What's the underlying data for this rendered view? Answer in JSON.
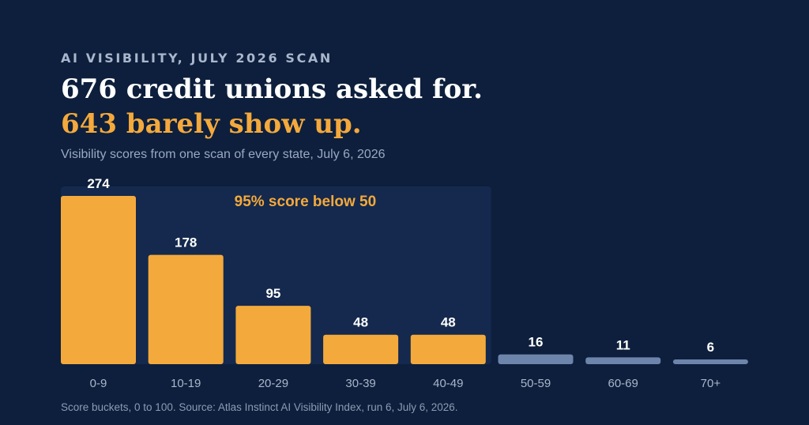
{
  "header": {
    "kicker": "AI VISIBILITY, JULY 2026 SCAN",
    "headline_line1": "676 credit unions asked for.",
    "headline_line2": "643 barely show up.",
    "subtitle": "Visibility scores from one scan of every state, July 6, 2026"
  },
  "footnote": "Score buckets, 0 to 100. Source: Atlas Instinct AI Visibility Index, run 6, July 6, 2026.",
  "colors": {
    "background": "#0d1f3c",
    "highlight_band": "#14294d",
    "bar_below_50": "#f4a93c",
    "bar_50_plus": "#6d84ab",
    "accent_text": "#f4a93c"
  },
  "chart_data": {
    "type": "bar",
    "categories": [
      "0-9",
      "10-19",
      "20-29",
      "30-39",
      "40-49",
      "50-59",
      "60-69",
      "70+"
    ],
    "values": [
      274,
      178,
      95,
      48,
      48,
      16,
      11,
      6
    ],
    "highlight": {
      "label": "95% score below 50",
      "categories": [
        "0-9",
        "10-19",
        "20-29",
        "30-39",
        "40-49"
      ]
    },
    "ylim": [
      0,
      274
    ],
    "grid": false,
    "legend": "none"
  }
}
